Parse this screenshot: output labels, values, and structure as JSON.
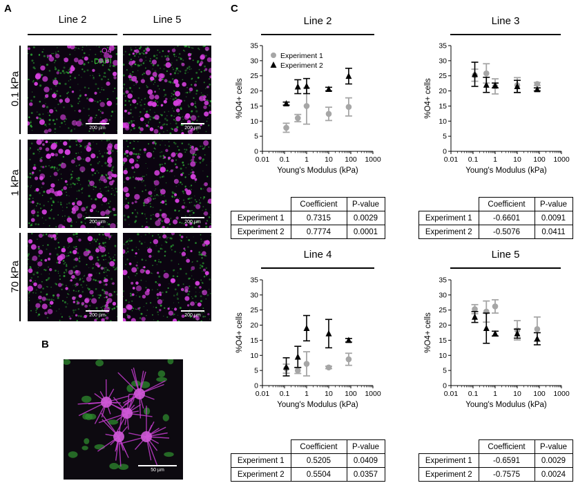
{
  "panels": {
    "a": "A",
    "b": "B",
    "c": "C"
  },
  "panelA": {
    "columns": [
      "Line 2",
      "Line 5"
    ],
    "rows": [
      "0.1 kPa",
      "1 kPa",
      "70 kPa"
    ],
    "legend": {
      "o4": "O4",
      "dapi": "DAPI",
      "o4_color": "#e040e8",
      "dapi_color": "#3ad23a"
    },
    "scale": "200 µm"
  },
  "panelB": {
    "scale": "50 µm"
  },
  "chart_data": [
    {
      "type": "scatter",
      "title": "Line 2",
      "xlabel": "Young's Modulus (kPa)",
      "ylabel": "%O4+ cells",
      "x_scale": "log",
      "xlim": [
        0.01,
        1000
      ],
      "ylim": [
        0,
        35
      ],
      "x_ticks": [
        "0.01",
        "0.1",
        "1",
        "10",
        "100",
        "1000"
      ],
      "y_ticks": [
        "0",
        "5",
        "10",
        "15",
        "20",
        "25",
        "30",
        "35"
      ],
      "legend": [
        "Experiment 1",
        "Experiment 2"
      ],
      "legend_position": "top-left",
      "series": [
        {
          "name": "Experiment 1",
          "color": "#a6a6a6",
          "marker": "circle",
          "points": [
            [
              0.12,
              7.8,
              1.5
            ],
            [
              0.4,
              11.0,
              1.2
            ],
            [
              1.0,
              15.0,
              6.0
            ],
            [
              10,
              12.4,
              2.2
            ],
            [
              80,
              14.7,
              3.0
            ]
          ]
        },
        {
          "name": "Experiment 2",
          "color": "#000000",
          "marker": "triangle",
          "points": [
            [
              0.12,
              15.8,
              0.5
            ],
            [
              0.4,
              21.4,
              2.3
            ],
            [
              1.0,
              21.6,
              2.5
            ],
            [
              10,
              20.6,
              0.6
            ],
            [
              80,
              24.9,
              2.6
            ]
          ]
        }
      ],
      "table": {
        "headers": [
          "",
          "Coefficient",
          "P-value"
        ],
        "rows": [
          [
            "Experiment 1",
            "0.7315",
            "0.0029"
          ],
          [
            "Experiment 2",
            "0.7774",
            "0.0001"
          ]
        ]
      }
    },
    {
      "type": "scatter",
      "title": "Line 3",
      "xlabel": "Young's Modulus (kPa)",
      "ylabel": "%O4+ cells",
      "x_scale": "log",
      "xlim": [
        0.01,
        1000
      ],
      "ylim": [
        0,
        35
      ],
      "x_ticks": [
        "0.01",
        "0.1",
        "1",
        "10",
        "100",
        "1000"
      ],
      "y_ticks": [
        "0",
        "5",
        "10",
        "15",
        "20",
        "25",
        "30",
        "35"
      ],
      "series": [
        {
          "name": "Experiment 1",
          "color": "#a6a6a6",
          "marker": "circle",
          "points": [
            [
              0.12,
              25.2,
              2.0
            ],
            [
              0.4,
              25.8,
              3.2
            ],
            [
              1.0,
              21.5,
              2.5
            ],
            [
              10,
              21.9,
              2.5
            ],
            [
              80,
              22.3,
              0.5
            ]
          ]
        },
        {
          "name": "Experiment 2",
          "color": "#000000",
          "marker": "triangle",
          "points": [
            [
              0.12,
              25.5,
              4.0
            ],
            [
              0.4,
              22.0,
              2.5
            ],
            [
              1.0,
              21.8,
              0.8
            ],
            [
              10,
              21.5,
              2.0
            ],
            [
              80,
              20.5,
              0.5
            ]
          ]
        }
      ],
      "table": {
        "headers": [
          "",
          "Coefficient",
          "P-value"
        ],
        "rows": [
          [
            "Experiment 1",
            "-0.6601",
            "0.0091"
          ],
          [
            "Experiment 2",
            "-0.5076",
            "0.0411"
          ]
        ]
      }
    },
    {
      "type": "scatter",
      "title": "Line 4",
      "xlabel": "Young's Modulus (kPa)",
      "ylabel": "%O4+ cells",
      "x_scale": "log",
      "xlim": [
        0.01,
        1000
      ],
      "ylim": [
        0,
        35
      ],
      "x_ticks": [
        "0.01",
        "0.1",
        "1",
        "10",
        "100",
        "1000"
      ],
      "y_ticks": [
        "0",
        "5",
        "10",
        "15",
        "20",
        "25",
        "30",
        "35"
      ],
      "series": [
        {
          "name": "Experiment 1",
          "color": "#a6a6a6",
          "marker": "circle",
          "points": [
            [
              0.12,
              5.6,
              1.5
            ],
            [
              0.4,
              5.0,
              1.0
            ],
            [
              1.0,
              7.2,
              4.0
            ],
            [
              10,
              6.0,
              0.4
            ],
            [
              80,
              8.7,
              2.0
            ]
          ]
        },
        {
          "name": "Experiment 2",
          "color": "#000000",
          "marker": "triangle",
          "points": [
            [
              0.12,
              6.2,
              3.0
            ],
            [
              0.4,
              9.5,
              3.5
            ],
            [
              1.0,
              19.0,
              4.2
            ],
            [
              10,
              17.2,
              4.7
            ],
            [
              80,
              15.0,
              0.6
            ]
          ]
        }
      ],
      "table": {
        "headers": [
          "",
          "Coefficient",
          "P-value"
        ],
        "rows": [
          [
            "Experiment 1",
            "0.5205",
            "0.0409"
          ],
          [
            "Experiment 2",
            "0.5504",
            "0.0357"
          ]
        ]
      }
    },
    {
      "type": "scatter",
      "title": "Line 5",
      "xlabel": "Young's Modulus (kPa)",
      "ylabel": "%O4+ cells",
      "x_scale": "log",
      "xlim": [
        0.01,
        1000
      ],
      "ylim": [
        0,
        35
      ],
      "x_ticks": [
        "0.01",
        "0.1",
        "1",
        "10",
        "100",
        "1000"
      ],
      "y_ticks": [
        "0",
        "5",
        "10",
        "15",
        "20",
        "25",
        "30",
        "35"
      ],
      "series": [
        {
          "name": "Experiment 1",
          "color": "#a6a6a6",
          "marker": "circle",
          "points": [
            [
              0.12,
              25.3,
              1.5
            ],
            [
              0.4,
              24.5,
              3.5
            ],
            [
              1.0,
              26.2,
              2.2
            ],
            [
              10,
              18.3,
              3.2
            ],
            [
              80,
              18.7,
              4.0
            ]
          ]
        },
        {
          "name": "Experiment 2",
          "color": "#000000",
          "marker": "triangle",
          "points": [
            [
              0.12,
              22.7,
              1.8
            ],
            [
              0.4,
              19.0,
              5.0
            ],
            [
              1.0,
              17.2,
              0.8
            ],
            [
              10,
              17.2,
              1.5
            ],
            [
              80,
              15.5,
              2.0
            ]
          ]
        }
      ],
      "table": {
        "headers": [
          "",
          "Coefficient",
          "P-value"
        ],
        "rows": [
          [
            "Experiment 1",
            "-0.6591",
            "0.0029"
          ],
          [
            "Experiment 2",
            "-0.7575",
            "0.0024"
          ]
        ]
      }
    }
  ]
}
